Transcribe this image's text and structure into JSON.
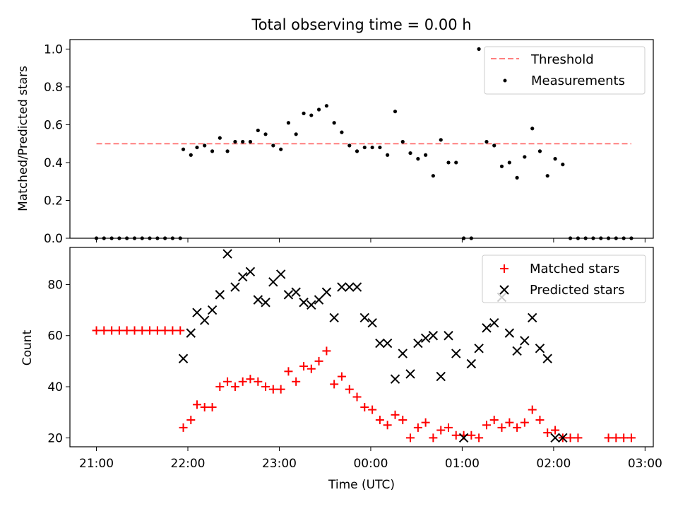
{
  "title": "Total observing time = 0.00 h",
  "xlabel": "Time (UTC)",
  "x_ticks": [
    "21:00",
    "22:00",
    "23:00",
    "00:00",
    "01:00",
    "02:00",
    "03:00"
  ],
  "colors": {
    "threshold": "#ff7f7f",
    "measurements": "#000000",
    "matched": "#ff0000",
    "predicted": "#000000"
  },
  "chart_data": [
    {
      "type": "scatter",
      "ylabel": "Matched/Predicted stars",
      "xlim": [
        -0.29,
        6.09
      ],
      "ylim": [
        0,
        1.05
      ],
      "y_ticks": [
        "0.0",
        "0.2",
        "0.4",
        "0.6",
        "0.8",
        "1.0"
      ],
      "y_tick_values": [
        0,
        0.2,
        0.4,
        0.6,
        0.8,
        1.0
      ],
      "threshold": {
        "name": "Threshold",
        "value": 0.5,
        "x_range": [
          0.0,
          5.85
        ],
        "style": "dashed"
      },
      "legend": {
        "position": "top-right",
        "entries": [
          "Threshold",
          "Measurements"
        ]
      },
      "series": [
        {
          "name": "Measurements",
          "x": [
            0.0,
            0.083,
            0.167,
            0.25,
            0.333,
            0.417,
            0.5,
            0.583,
            0.667,
            0.75,
            0.833,
            0.917,
            0.95,
            1.033,
            1.1,
            1.183,
            1.267,
            1.35,
            1.433,
            1.517,
            1.6,
            1.683,
            1.767,
            1.85,
            1.933,
            2.017,
            2.1,
            2.183,
            2.267,
            2.35,
            2.433,
            2.517,
            2.6,
            2.683,
            2.767,
            2.85,
            2.933,
            3.017,
            3.1,
            3.183,
            3.267,
            3.35,
            3.433,
            3.517,
            3.6,
            3.683,
            3.767,
            3.85,
            3.933,
            4.017,
            4.1,
            4.183,
            4.267,
            4.35,
            4.433,
            4.517,
            4.6,
            4.683,
            4.767,
            4.85,
            4.933,
            5.017,
            5.1,
            5.183,
            5.267,
            5.35,
            5.433,
            5.517,
            5.6,
            5.683,
            5.767,
            5.85
          ],
          "y": [
            0,
            0,
            0,
            0,
            0,
            0,
            0,
            0,
            0,
            0,
            0,
            0,
            0.47,
            0.44,
            0.48,
            0.49,
            0.46,
            0.53,
            0.46,
            0.51,
            0.51,
            0.51,
            0.57,
            0.55,
            0.49,
            0.47,
            0.61,
            0.55,
            0.66,
            0.65,
            0.68,
            0.7,
            0.61,
            0.56,
            0.49,
            0.46,
            0.48,
            0.48,
            0.48,
            0.44,
            0.67,
            0.51,
            0.45,
            0.42,
            0.44,
            0.33,
            0.52,
            0.4,
            0.4,
            0,
            0,
            1.0,
            0.51,
            0.49,
            0.38,
            0.4,
            0.32,
            0.43,
            0.58,
            0.46,
            0.33,
            0.42,
            0.39,
            0,
            0,
            0,
            0,
            0,
            0,
            0,
            0,
            0
          ]
        }
      ]
    },
    {
      "type": "scatter",
      "ylabel": "Count",
      "xlim": [
        -0.29,
        6.09
      ],
      "ylim": [
        16.5,
        94.5
      ],
      "y_ticks": [
        "20",
        "40",
        "60",
        "80"
      ],
      "y_tick_values": [
        20,
        40,
        60,
        80
      ],
      "legend": {
        "position": "top-right",
        "entries": [
          "Matched stars",
          "Predicted stars"
        ]
      },
      "series": [
        {
          "name": "Matched stars",
          "marker": "+",
          "x": [
            0.0,
            0.083,
            0.167,
            0.25,
            0.333,
            0.417,
            0.5,
            0.583,
            0.667,
            0.75,
            0.833,
            0.917,
            0.95,
            1.033,
            1.1,
            1.183,
            1.267,
            1.35,
            1.433,
            1.517,
            1.6,
            1.683,
            1.767,
            1.85,
            1.933,
            2.017,
            2.1,
            2.183,
            2.267,
            2.35,
            2.433,
            2.517,
            2.6,
            2.683,
            2.767,
            2.85,
            2.933,
            3.017,
            3.1,
            3.183,
            3.267,
            3.35,
            3.433,
            3.517,
            3.6,
            3.683,
            3.767,
            3.85,
            3.933,
            4.017,
            4.1,
            4.183,
            4.267,
            4.35,
            4.433,
            4.517,
            4.6,
            4.683,
            4.767,
            4.85,
            4.933,
            5.017,
            5.1,
            5.183,
            5.267,
            5.6,
            5.683,
            5.767,
            5.85
          ],
          "y": [
            62,
            62,
            62,
            62,
            62,
            62,
            62,
            62,
            62,
            62,
            62,
            62,
            24,
            27,
            33,
            32,
            32,
            40,
            42,
            40,
            42,
            43,
            42,
            40,
            39,
            39,
            46,
            42,
            48,
            47,
            50,
            54,
            41,
            44,
            39,
            36,
            32,
            31,
            27,
            25,
            29,
            27,
            20,
            24,
            26,
            20,
            23,
            24,
            21,
            21,
            21,
            20,
            25,
            27,
            24,
            26,
            24,
            26,
            31,
            27,
            22,
            23,
            20,
            20,
            20,
            20,
            20,
            20,
            20
          ]
        },
        {
          "name": "Predicted stars",
          "marker": "x",
          "x": [
            0.95,
            1.033,
            1.1,
            1.183,
            1.267,
            1.35,
            1.433,
            1.517,
            1.6,
            1.683,
            1.767,
            1.85,
            1.933,
            2.017,
            2.1,
            2.183,
            2.267,
            2.35,
            2.433,
            2.517,
            2.6,
            2.683,
            2.767,
            2.85,
            2.933,
            3.017,
            3.1,
            3.183,
            3.267,
            3.35,
            3.433,
            3.517,
            3.6,
            3.683,
            3.767,
            3.85,
            3.933,
            4.017,
            4.1,
            4.183,
            4.267,
            4.35,
            4.433,
            4.517,
            4.6,
            4.683,
            4.767,
            4.85,
            4.933,
            5.017,
            5.1
          ],
          "y": [
            51,
            61,
            69,
            66,
            70,
            76,
            92,
            79,
            83,
            85,
            74,
            73,
            81,
            84,
            76,
            77,
            73,
            72,
            74,
            77,
            67,
            79,
            79,
            79,
            67,
            65,
            57,
            57,
            43,
            53,
            45,
            57,
            59,
            60,
            44,
            60,
            53,
            20,
            49,
            55,
            63,
            65,
            75,
            61,
            54,
            58,
            67,
            55,
            51,
            20,
            20
          ]
        }
      ]
    }
  ]
}
